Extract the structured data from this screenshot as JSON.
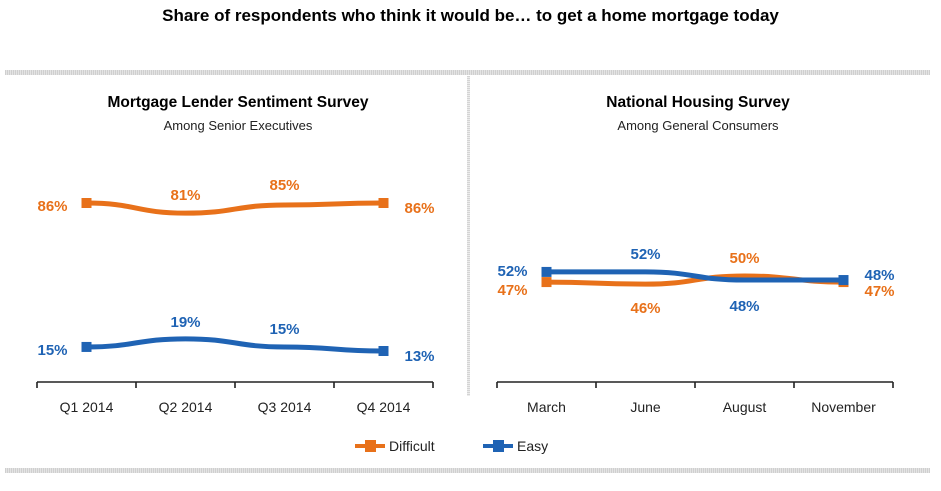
{
  "title": "Share of respondents who think it would be… to get a home mortgage today",
  "colors": {
    "difficult": "#E8711A",
    "easy": "#1F63B4"
  },
  "legend": [
    {
      "label": "Difficult",
      "series": "difficult"
    },
    {
      "label": "Easy",
      "series": "easy"
    }
  ],
  "chart_data": [
    {
      "type": "line",
      "title": "Mortgage Lender Sentiment Survey",
      "subtitle": "Among Senior Executives",
      "categories": [
        "Q1 2014",
        "Q2 2014",
        "Q3 2014",
        "Q4 2014"
      ],
      "ylim": [
        0,
        100
      ],
      "grid": false,
      "series": [
        {
          "name": "Difficult",
          "key": "difficult",
          "values": [
            86,
            81,
            85,
            86
          ],
          "labels": [
            "86%",
            "81%",
            "85%",
            "86%"
          ]
        },
        {
          "name": "Easy",
          "key": "easy",
          "values": [
            15,
            19,
            15,
            13
          ],
          "labels": [
            "15%",
            "19%",
            "15%",
            "13%"
          ]
        }
      ]
    },
    {
      "type": "line",
      "title": "National Housing Survey",
      "subtitle": "Among General Consumers",
      "categories": [
        "March",
        "June",
        "August",
        "November"
      ],
      "ylim": [
        0,
        100
      ],
      "grid": false,
      "series": [
        {
          "name": "Difficult",
          "key": "difficult",
          "values": [
            47,
            46,
            50,
            47
          ],
          "labels": [
            "47%",
            "46%",
            "50%",
            "47%"
          ]
        },
        {
          "name": "Easy",
          "key": "easy",
          "values": [
            52,
            52,
            48,
            48
          ],
          "labels": [
            "52%",
            "52%",
            "48%",
            "48%"
          ]
        }
      ]
    }
  ]
}
